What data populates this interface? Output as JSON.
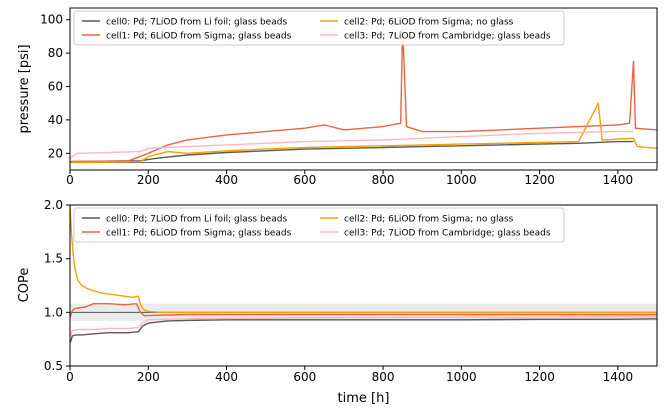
{
  "chart_data": [
    {
      "type": "line",
      "xlabel": "",
      "ylabel": "pressure [psi]",
      "xlim": [
        0,
        1500
      ],
      "ylim": [
        10,
        107
      ],
      "xticks": [
        0,
        200,
        400,
        600,
        800,
        1000,
        1200,
        1400
      ],
      "yticks": [
        20,
        40,
        60,
        80,
        100
      ],
      "grid": false,
      "legend": "top-left",
      "reference_lines": [
        {
          "y": 14.5,
          "color": "#666666"
        }
      ],
      "series": [
        {
          "name": "cell0: Pd; 7LiOD from Li foil; glass beads",
          "color": "#595959",
          "x": [
            0,
            180,
            220,
            300,
            400,
            500,
            600,
            700,
            800,
            900,
            1000,
            1100,
            1200,
            1300,
            1400,
            1440
          ],
          "y": [
            15,
            15.5,
            17,
            19,
            20.5,
            21.5,
            22.5,
            23,
            23.5,
            24,
            24.5,
            25,
            25.5,
            26,
            27,
            27
          ]
        },
        {
          "name": "cell1: Pd; 6LiOD from Sigma; glass beads",
          "color": "#ee6244",
          "x": [
            0,
            150,
            200,
            250,
            300,
            400,
            500,
            600,
            650,
            700,
            800,
            845,
            850,
            860,
            900,
            1000,
            1100,
            1200,
            1300,
            1400,
            1430,
            1440,
            1445,
            1500
          ],
          "y": [
            15,
            15.5,
            20,
            25,
            28,
            31,
            33,
            35,
            37,
            34,
            36,
            38,
            95,
            36,
            33,
            33,
            34,
            35,
            36,
            37,
            38,
            75,
            35,
            34
          ]
        },
        {
          "name": "cell2: Pd; 6LiOD from Sigma; no glass",
          "color": "#f5a100",
          "x": [
            0,
            180,
            200,
            250,
            300,
            400,
            500,
            600,
            700,
            800,
            900,
            1000,
            1100,
            1200,
            1300,
            1350,
            1360,
            1370,
            1400,
            1440,
            1450,
            1500
          ],
          "y": [
            14.5,
            15,
            18,
            21,
            20,
            21.5,
            22.5,
            23.5,
            24,
            24.5,
            25,
            25.5,
            26,
            26.5,
            27,
            50,
            28,
            28,
            28.5,
            29,
            24,
            23
          ]
        },
        {
          "name": "cell3: Pd; 7LiOD from Cambridge; glass beads",
          "color": "#ffb6c1",
          "x": [
            0,
            20,
            180,
            200,
            300,
            400,
            500,
            600,
            700,
            800,
            900,
            1000,
            1100,
            1200,
            1300,
            1400,
            1440
          ],
          "y": [
            17,
            20,
            21,
            23,
            24,
            25,
            26,
            27,
            27.5,
            28,
            29,
            30,
            31,
            32,
            32.5,
            33,
            33
          ]
        }
      ]
    },
    {
      "type": "line",
      "xlabel": "time [h]",
      "ylabel": "COPe",
      "xlim": [
        0,
        1500
      ],
      "ylim": [
        0.5,
        2.0
      ],
      "xticks": [
        0,
        200,
        400,
        600,
        800,
        1000,
        1200,
        1400
      ],
      "yticks": [
        0.5,
        1.0,
        1.5,
        2.0
      ],
      "grid": false,
      "legend": "top-left",
      "band": {
        "y0": 0.92,
        "y1": 1.08,
        "color": "#ebebeb"
      },
      "reference_lines": [
        {
          "y": 1.0,
          "color": "#555555"
        }
      ],
      "series": [
        {
          "name": "cell0: Pd; 7LiOD from Li foil; glass beads",
          "color": "#595959",
          "x": [
            0,
            3,
            6,
            15,
            30,
            60,
            100,
            150,
            175,
            185,
            200,
            250,
            300,
            400,
            600,
            800,
            1000,
            1200,
            1400,
            1500
          ],
          "y": [
            0.72,
            0.74,
            0.78,
            0.79,
            0.79,
            0.8,
            0.81,
            0.81,
            0.82,
            0.87,
            0.9,
            0.92,
            0.925,
            0.93,
            0.93,
            0.93,
            0.93,
            0.935,
            0.935,
            0.94
          ]
        },
        {
          "name": "cell1: Pd; 6LiOD from Sigma; glass beads",
          "color": "#ee6244",
          "x": [
            0,
            5,
            10,
            20,
            40,
            60,
            100,
            140,
            170,
            180,
            190,
            200,
            250,
            300,
            600,
            1000,
            1400,
            1500
          ],
          "y": [
            0.95,
            1.01,
            1.03,
            1.04,
            1.05,
            1.08,
            1.08,
            1.07,
            1.08,
            1.0,
            0.97,
            0.97,
            0.975,
            0.98,
            0.98,
            0.98,
            0.98,
            0.98
          ]
        },
        {
          "name": "cell2: Pd; 6LiOD from Sigma; no glass",
          "color": "#f5a100",
          "x": [
            0,
            4,
            8,
            12,
            20,
            30,
            45,
            60,
            80,
            100,
            120,
            140,
            160,
            175,
            180,
            190,
            200,
            230,
            260,
            300,
            400,
            600,
            800,
            1000,
            1200,
            1400,
            1500
          ],
          "y": [
            2.0,
            1.72,
            1.55,
            1.42,
            1.3,
            1.25,
            1.22,
            1.2,
            1.18,
            1.17,
            1.16,
            1.15,
            1.14,
            1.15,
            1.07,
            1.02,
            1.01,
            1.0,
            1.0,
            1.0,
            1.0,
            1.0,
            1.0,
            1.0,
            1.0,
            1.0,
            1.0
          ]
        },
        {
          "name": "cell3: Pd; 7LiOD from Cambridge; glass beads",
          "color": "#ffb6c1",
          "x": [
            0,
            3,
            6,
            20,
            60,
            100,
            150,
            175,
            185,
            200,
            300,
            600,
            1000,
            1400,
            1500
          ],
          "y": [
            0.78,
            0.8,
            0.83,
            0.84,
            0.84,
            0.85,
            0.85,
            0.86,
            0.9,
            0.93,
            0.94,
            0.95,
            0.955,
            0.96,
            0.96
          ]
        }
      ]
    }
  ]
}
